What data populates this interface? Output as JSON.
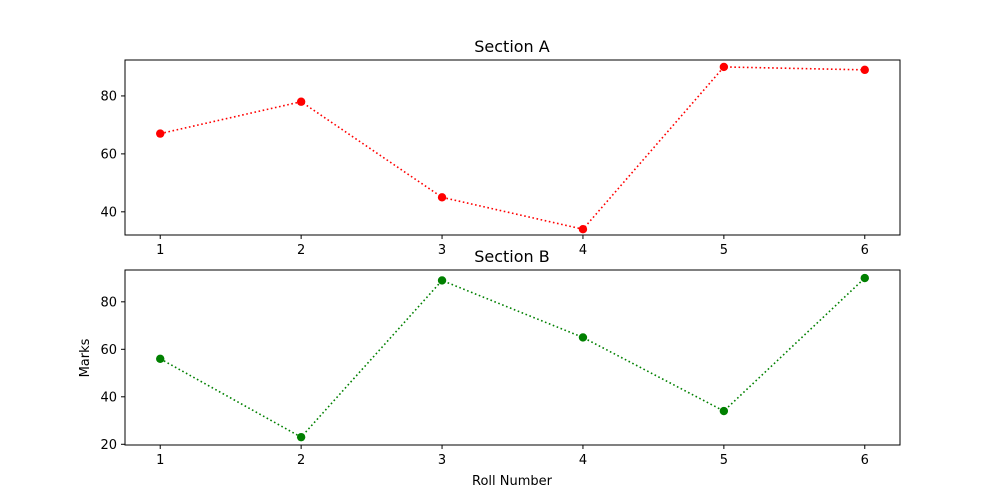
{
  "chart_data": [
    {
      "type": "line",
      "title": "Section A",
      "xlabel": "",
      "ylabel": "",
      "x": [
        1,
        2,
        3,
        4,
        5,
        6
      ],
      "xticks": [
        "1",
        "2",
        "3",
        "4",
        "5",
        "6"
      ],
      "xlim": [
        0.75,
        6.25
      ],
      "ylim": [
        32,
        92.4
      ],
      "yticks": [
        40,
        60,
        80
      ],
      "grid": false,
      "series": [
        {
          "values": [
            67,
            78,
            45,
            34,
            90,
            89
          ],
          "color": "#ff0000",
          "linestyle": "dotted",
          "marker": "circle"
        }
      ]
    },
    {
      "type": "line",
      "title": "Section B",
      "xlabel": "Roll Number",
      "ylabel": "Marks",
      "x": [
        1,
        2,
        3,
        4,
        5,
        6
      ],
      "xticks": [
        "1",
        "2",
        "3",
        "4",
        "5",
        "6"
      ],
      "xlim": [
        0.75,
        6.25
      ],
      "ylim": [
        19.7,
        93.4
      ],
      "yticks": [
        20,
        40,
        60,
        80
      ],
      "grid": false,
      "series": [
        {
          "values": [
            56,
            23,
            89,
            65,
            34,
            90
          ],
          "color": "#008000",
          "linestyle": "dotted",
          "marker": "circle"
        }
      ]
    }
  ]
}
